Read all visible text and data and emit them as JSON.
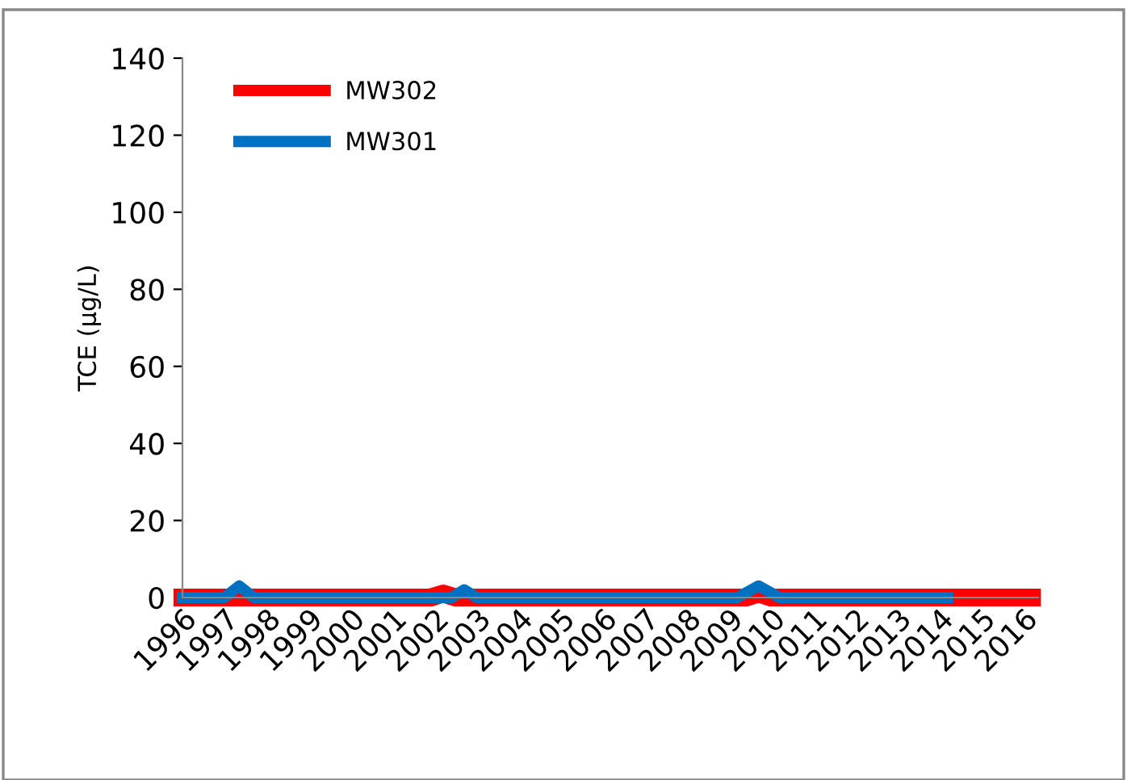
{
  "chart_data": {
    "type": "line",
    "ylabel": "TCE (µg/L)",
    "series": [
      {
        "name": "MW302",
        "color": "#ff0000",
        "x": [
          1996,
          2001.9,
          2002.2,
          2002.5,
          2009.4,
          2009.7,
          2010.0,
          2016.2
        ],
        "values": [
          0,
          0,
          1,
          0,
          0,
          1,
          0,
          0
        ]
      },
      {
        "name": "MW301",
        "color": "#0070c0",
        "x": [
          1996,
          1997.0,
          1997.35,
          1997.7,
          2002.4,
          2002.7,
          2003.0,
          2009.2,
          2009.7,
          2010.2,
          2014.2
        ],
        "values": [
          0,
          0,
          3,
          0,
          0,
          2,
          0,
          0,
          3,
          0,
          0
        ]
      }
    ],
    "xlim": [
      1996,
      2016.35
    ],
    "xticks": [
      1996,
      1997,
      1998,
      1999,
      2000,
      2001,
      2002,
      2003,
      2004,
      2005,
      2006,
      2007,
      2008,
      2009,
      2010,
      2011,
      2012,
      2013,
      2014,
      2015,
      2016
    ],
    "ylim": [
      0,
      140
    ],
    "yticks": [
      0,
      20,
      40,
      60,
      80,
      100,
      120,
      140
    ],
    "grid": false,
    "legend": "top left",
    "marker": "none",
    "line_style": "solid"
  }
}
